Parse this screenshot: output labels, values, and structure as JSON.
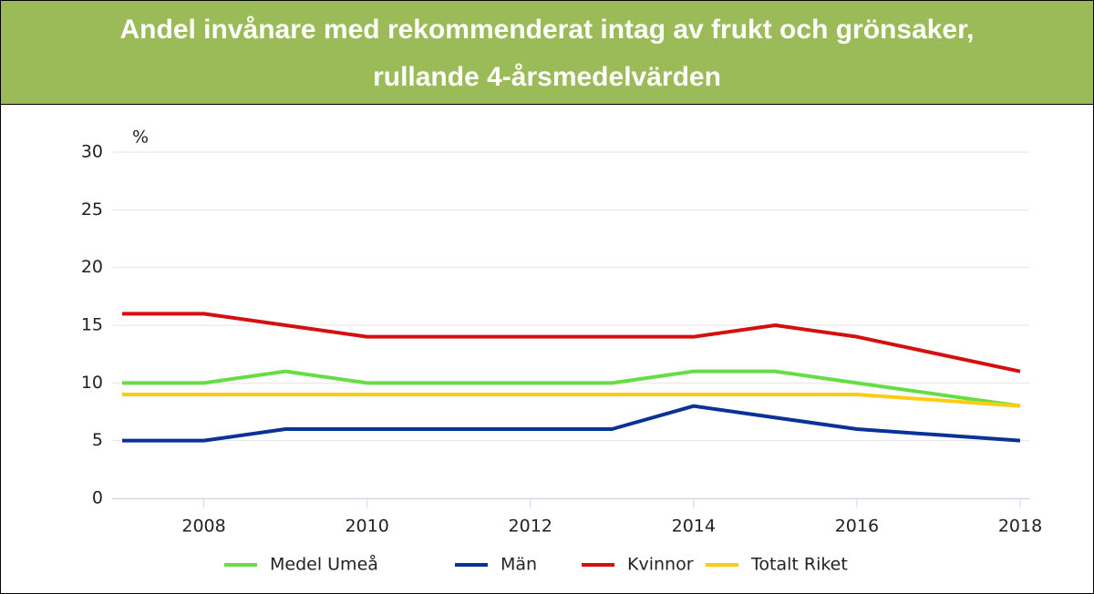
{
  "chart_data": {
    "type": "line",
    "title": "Andel invånare med rekommenderat intag av frukt och grönsaker,",
    "subtitle": "rullande 4-årsmedelvärden",
    "y_label": "%",
    "x": [
      2007,
      2008,
      2009,
      2010,
      2011,
      2012,
      2013,
      2014,
      2015,
      2016,
      2018
    ],
    "series": [
      {
        "name": "Medel Umeå",
        "color": "#66dd44",
        "values": [
          10,
          10,
          11,
          10,
          10,
          10,
          10,
          11,
          11,
          10,
          8
        ]
      },
      {
        "name": "Män",
        "color": "#0a3296",
        "values": [
          5,
          5,
          6,
          6,
          6,
          6,
          6,
          8,
          7,
          6,
          5
        ]
      },
      {
        "name": "Kvinnor",
        "color": "#d40f0f",
        "values": [
          16,
          16,
          15,
          14,
          14,
          14,
          14,
          14,
          15,
          14,
          11
        ]
      },
      {
        "name": "Totalt Riket",
        "color": "#ffcc11",
        "values": [
          9,
          9,
          9,
          9,
          9,
          9,
          9,
          9,
          9,
          9,
          8
        ]
      }
    ],
    "xlim": [
      2007,
      2018
    ],
    "xticks": [
      2008,
      2010,
      2012,
      2014,
      2016,
      2018
    ],
    "ylim": [
      0,
      30
    ],
    "yticks": [
      0,
      5,
      10,
      15,
      20,
      25,
      30
    ],
    "grid": true
  }
}
